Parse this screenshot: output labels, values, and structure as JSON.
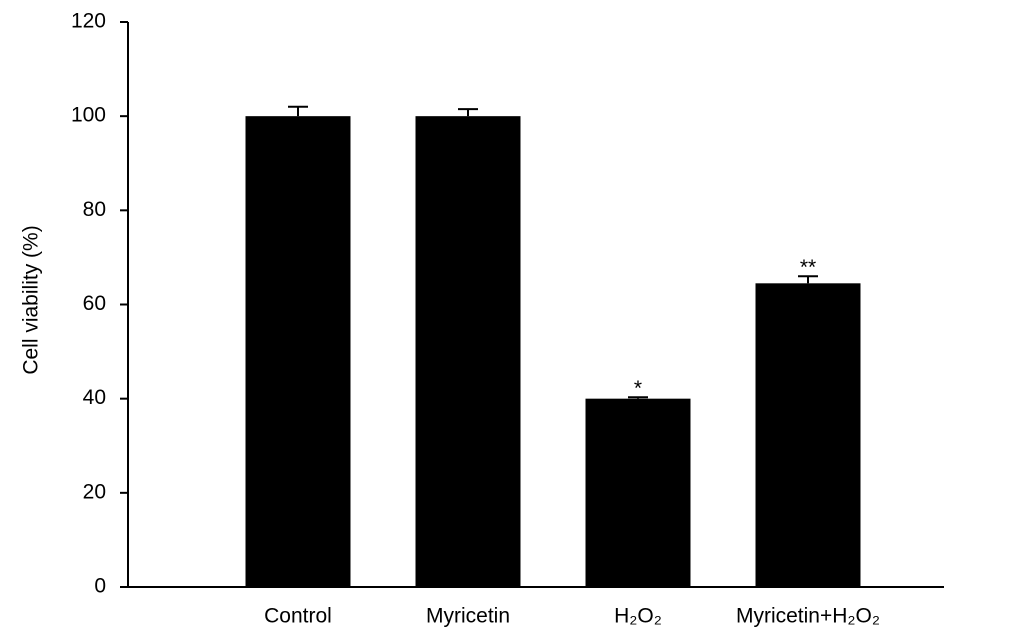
{
  "chart_data": {
    "type": "bar",
    "ylabel": "Cell viability (%)",
    "categories": [
      "Control",
      "Myricetin",
      "H₂O₂",
      "Myricetin+H₂O₂"
    ],
    "values": [
      100,
      100,
      40,
      64.5
    ],
    "errors": [
      2,
      1.5,
      0.3,
      1.5
    ],
    "significance": [
      null,
      null,
      "*",
      "**"
    ],
    "color": "#000000",
    "ylim": [
      0,
      120
    ],
    "yticks": [
      0,
      20,
      40,
      60,
      80,
      100,
      120
    ],
    "grid": false
  }
}
